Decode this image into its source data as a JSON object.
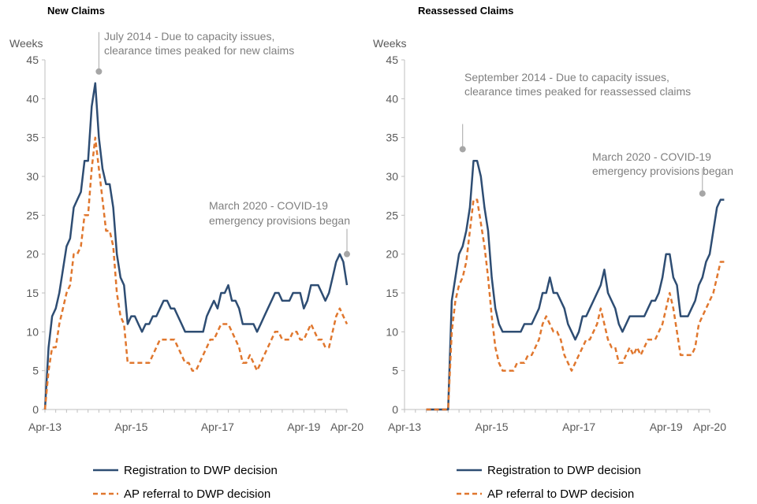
{
  "colors": {
    "registration": "#2e4d73",
    "ap_referral": "#e0772e",
    "annotation": "#a6a6a6",
    "axis": "#bfbfbf",
    "text": "#595959"
  },
  "chart_data": [
    {
      "type": "line",
      "title": "New Claims",
      "ylabel": "Weeks",
      "ylim": [
        0,
        45
      ],
      "yticks": [
        "0",
        "5",
        "10",
        "15",
        "20",
        "25",
        "30",
        "35",
        "40",
        "45"
      ],
      "xlim": [
        0,
        84
      ],
      "xtick_labels": [
        {
          "label": "Apr-13",
          "x": 0
        },
        {
          "label": "Apr-15",
          "x": 24
        },
        {
          "label": "Apr-17",
          "x": 48
        },
        {
          "label": "Apr-19",
          "x": 72
        },
        {
          "label": "Apr-20",
          "x": 84
        }
      ],
      "series": [
        {
          "name": "Registration to DWP decision",
          "key": "registration",
          "start": 0,
          "values": [
            0,
            8,
            12,
            13,
            15,
            18,
            21,
            22,
            26,
            27,
            28,
            32,
            32,
            39,
            42,
            35,
            31,
            29,
            29,
            26,
            20,
            17,
            16,
            11,
            12,
            12,
            11,
            10,
            11,
            11,
            12,
            12,
            13,
            14,
            14,
            13,
            13,
            12,
            11,
            10,
            10,
            10,
            10,
            10,
            10,
            12,
            13,
            14,
            13,
            15,
            15,
            16,
            14,
            14,
            13,
            11,
            11,
            11,
            11,
            10,
            11,
            12,
            13,
            14,
            15,
            15,
            14,
            14,
            14,
            15,
            15,
            15,
            13,
            14,
            16,
            16,
            16,
            15,
            14,
            15,
            17,
            19,
            20,
            19,
            16
          ]
        },
        {
          "name": "AP referral to DWP decision",
          "key": "ap_referral",
          "start": 0,
          "values": [
            0,
            5,
            8,
            8,
            11,
            13,
            15,
            16,
            20,
            20,
            21,
            25,
            25,
            31,
            35,
            31,
            27,
            23,
            23,
            21,
            15,
            12,
            11,
            6,
            6,
            6,
            6,
            6,
            6,
            6,
            7,
            8,
            9,
            9,
            9,
            9,
            9,
            8,
            7,
            6,
            6,
            5,
            5,
            6,
            7,
            8,
            9,
            9,
            10,
            11,
            11,
            11,
            10,
            9,
            8,
            6,
            6,
            7,
            6,
            5,
            6,
            7,
            8,
            9,
            10,
            10,
            9,
            9,
            9,
            10,
            10,
            9,
            9,
            10,
            11,
            10,
            9,
            9,
            8,
            8,
            10,
            12,
            13,
            12,
            11
          ]
        }
      ],
      "annotations": [
        {
          "lines": [
            "July 2014 - Due to capacity issues,",
            "clearance times peaked for new claims"
          ],
          "point": [
            15,
            43.5
          ]
        },
        {
          "lines": [
            "March 2020 - COVID-19",
            "emergency provisions began"
          ],
          "point": [
            84,
            20
          ]
        }
      ]
    },
    {
      "type": "line",
      "title": "Reassessed Claims",
      "ylabel": "Weeks",
      "ylim": [
        0,
        45
      ],
      "yticks": [
        "0",
        "5",
        "10",
        "15",
        "20",
        "25",
        "30",
        "35",
        "40",
        "45"
      ],
      "xlim": [
        0,
        84
      ],
      "xtick_labels": [
        {
          "label": "Apr-13",
          "x": 0
        },
        {
          "label": "Apr-15",
          "x": 24
        },
        {
          "label": "Apr-17",
          "x": 48
        },
        {
          "label": "Apr-19",
          "x": 72
        },
        {
          "label": "Apr-20",
          "x": 84
        }
      ],
      "series": [
        {
          "name": "Registration to DWP decision",
          "key": "registration",
          "start": 6,
          "values": [
            0,
            0,
            0,
            0,
            0,
            0,
            0,
            14,
            17,
            20,
            21,
            23,
            26,
            32,
            32,
            30,
            26,
            23,
            17,
            13,
            11,
            10,
            10,
            10,
            10,
            10,
            10,
            11,
            11,
            11,
            12,
            13,
            15,
            15,
            17,
            15,
            15,
            14,
            13,
            11,
            10,
            9,
            10,
            12,
            12,
            13,
            14,
            15,
            16,
            18,
            15,
            14,
            13,
            11,
            10,
            11,
            12,
            12,
            12,
            12,
            12,
            13,
            14,
            14,
            15,
            17,
            20,
            20,
            17,
            16,
            12,
            12,
            12,
            13,
            14,
            16,
            17,
            19,
            20,
            23,
            26,
            27,
            27
          ]
        },
        {
          "name": "AP referral to DWP decision",
          "key": "ap_referral",
          "start": 6,
          "values": [
            0,
            0,
            0,
            0,
            0,
            0,
            0,
            10,
            14,
            16,
            17,
            19,
            23,
            27,
            27,
            24,
            21,
            17,
            12,
            8,
            6,
            5,
            5,
            5,
            5,
            6,
            6,
            6,
            7,
            7,
            8,
            9,
            11,
            12,
            11,
            10,
            10,
            9,
            7,
            6,
            5,
            6,
            7,
            8,
            9,
            9,
            10,
            11,
            13,
            11,
            9,
            8,
            8,
            6,
            6,
            7,
            8,
            7,
            8,
            7,
            8,
            9,
            9,
            9,
            10,
            11,
            13,
            15,
            13,
            10,
            7,
            7,
            7,
            7,
            8,
            11,
            12,
            13,
            14,
            15,
            17,
            19,
            19
          ]
        }
      ],
      "annotations": [
        {
          "lines": [
            "September 2014 - Due to capacity issues,",
            "clearance times peaked for reassessed claims"
          ],
          "point": [
            16,
            33.5
          ]
        },
        {
          "lines": [
            "March 2020 - COVID-19",
            "emergency provisions began"
          ],
          "point": [
            82,
            27.8
          ]
        }
      ]
    }
  ],
  "legend": [
    {
      "key": "registration",
      "label": "Registration to DWP decision"
    },
    {
      "key": "ap_referral",
      "label": "AP referral to DWP decision"
    }
  ]
}
